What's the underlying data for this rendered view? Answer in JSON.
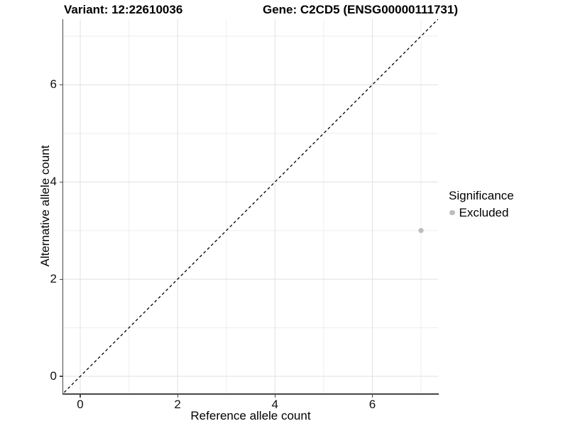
{
  "chart_data": {
    "type": "scatter",
    "titles": {
      "variant": "Variant: 12:22610036",
      "gene": "Gene: C2CD5 (ENSG00000111731)"
    },
    "xlabel": "Reference allele count",
    "ylabel": "Alternative allele count",
    "xlim": [
      -0.35,
      7.35
    ],
    "ylim": [
      -0.35,
      7.35
    ],
    "x_ticks": [
      0,
      2,
      4,
      6
    ],
    "y_ticks": [
      0,
      2,
      4,
      6
    ],
    "minor_grid": [
      1,
      3,
      5,
      7
    ],
    "grid": "major and minor gridlines at integers, light gray on white",
    "points": [
      {
        "x": 7,
        "y": 3,
        "significance": "Excluded"
      }
    ],
    "point_style": {
      "color": "#bebebe",
      "radius": 3.6
    },
    "reference_line": {
      "type": "identity",
      "equation": "y = x",
      "style": "dashed",
      "color": "#000000"
    },
    "legend": {
      "title": "Significance",
      "position": "right",
      "entries": [
        {
          "label": "Excluded",
          "color": "#bebebe"
        }
      ]
    },
    "colors": {
      "background": "#ffffff",
      "grid_major": "#e3e3e3",
      "grid_minor": "#eeeeee",
      "axis_line": "#474747",
      "tick_text": "#111111"
    }
  }
}
